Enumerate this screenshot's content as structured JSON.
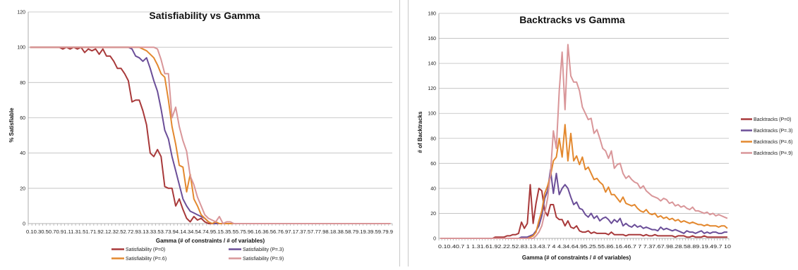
{
  "chart_data": [
    {
      "type": "line",
      "title": "Satisfiability vs Gamma",
      "xlabel": "Gamma (# of constraints / # of variables)",
      "ylabel": "% Satisfiable",
      "ylim": [
        0,
        120
      ],
      "yticks": [
        "0",
        "20",
        "40",
        "60",
        "80",
        "100",
        "120"
      ],
      "xtick_text": "0.10.30.50.70.91.11.31.51.71.92.12.32.52.72.93.13.33.53.73.94.14.34.54.74.95.15.35.55.75.96.16.36.56.76.97.17.37.57.77.98.18.38.58.79.19.39.59.79.9",
      "x": [
        0.1,
        0.2,
        0.3,
        0.4,
        0.5,
        0.6,
        0.7,
        0.8,
        0.9,
        1.0,
        1.1,
        1.2,
        1.3,
        1.4,
        1.5,
        1.6,
        1.7,
        1.8,
        1.9,
        2.0,
        2.1,
        2.2,
        2.3,
        2.4,
        2.5,
        2.6,
        2.7,
        2.8,
        2.9,
        3.0,
        3.1,
        3.2,
        3.3,
        3.4,
        3.5,
        3.6,
        3.7,
        3.8,
        3.9,
        4.0,
        4.1,
        4.2,
        4.3,
        4.4,
        4.5,
        4.6,
        4.7,
        4.8,
        4.9,
        5.0,
        5.1,
        5.2,
        5.3,
        5.4,
        5.5,
        5.6,
        5.7,
        5.8,
        5.9,
        6.0,
        6.1,
        6.2,
        6.3,
        6.4,
        6.5,
        6.6,
        6.7,
        6.8,
        6.9,
        7.0,
        7.1,
        7.2,
        7.3,
        7.4,
        7.5,
        7.6,
        7.7,
        7.8,
        7.9,
        8.0,
        8.1,
        8.2,
        8.3,
        8.4,
        8.5,
        8.6,
        8.7,
        8.8,
        8.9,
        9.0,
        9.1,
        9.2,
        9.3,
        9.4,
        9.5,
        9.6,
        9.7,
        9.8,
        9.9,
        10.0
      ],
      "legend_position": "bottom",
      "series": [
        {
          "name": "Satisfiability (P=0)",
          "color": "#a8393a",
          "values": [
            100,
            100,
            100,
            100,
            100,
            100,
            100,
            100,
            100,
            99,
            100,
            99,
            100,
            99,
            100,
            97,
            99,
            98,
            99,
            96,
            99,
            95,
            95,
            92,
            88,
            88,
            85,
            81,
            69,
            70,
            70,
            64,
            56,
            40,
            38,
            42,
            38,
            21,
            20,
            20,
            10,
            14,
            8,
            3,
            1,
            4,
            2,
            3,
            1,
            0,
            0,
            0,
            0,
            0,
            0,
            0,
            0,
            0,
            0,
            0,
            0,
            0,
            0,
            0,
            0,
            0,
            0,
            0,
            0,
            0,
            0,
            0,
            0,
            0,
            0,
            0,
            0,
            0,
            0,
            0,
            0,
            0,
            0,
            0,
            0,
            0,
            0,
            0,
            0,
            0,
            0,
            0,
            0,
            0,
            0,
            0,
            0,
            0,
            0,
            0
          ]
        },
        {
          "name": "Satisfiability (P=.3)",
          "color": "#6b4e98",
          "values": [
            100,
            100,
            100,
            100,
            100,
            100,
            100,
            100,
            100,
            100,
            100,
            100,
            100,
            100,
            100,
            100,
            100,
            100,
            100,
            100,
            100,
            100,
            100,
            100,
            100,
            100,
            100,
            100,
            99,
            95,
            94,
            92,
            94,
            88,
            81,
            75,
            65,
            53,
            48,
            38,
            30,
            22,
            14,
            10,
            7,
            6,
            5,
            4,
            3,
            1,
            0,
            0,
            0,
            0,
            0,
            0,
            0,
            0,
            0,
            0,
            0,
            0,
            0,
            0,
            0,
            0,
            0,
            0,
            0,
            0,
            0,
            0,
            0,
            0,
            0,
            0,
            0,
            0,
            0,
            0,
            0,
            0,
            0,
            0,
            0,
            0,
            0,
            0,
            0,
            0,
            0,
            0,
            0,
            0,
            0,
            0,
            0,
            0,
            0,
            0
          ]
        },
        {
          "name": "Satisfiability (P=.6)",
          "color": "#e3882e",
          "values": [
            100,
            100,
            100,
            100,
            100,
            100,
            100,
            100,
            100,
            100,
            100,
            100,
            100,
            100,
            100,
            100,
            100,
            100,
            100,
            100,
            100,
            100,
            100,
            100,
            100,
            100,
            100,
            100,
            100,
            100,
            100,
            99,
            98,
            96,
            94,
            90,
            85,
            83,
            70,
            55,
            45,
            33,
            32,
            18,
            28,
            14,
            10,
            5,
            3,
            1,
            0,
            1,
            0,
            0,
            0,
            0,
            0,
            0,
            0,
            0,
            0,
            0,
            0,
            0,
            0,
            0,
            0,
            0,
            0,
            0,
            0,
            0,
            0,
            0,
            0,
            0,
            0,
            0,
            0,
            0,
            0,
            0,
            0,
            0,
            0,
            0,
            0,
            0,
            0,
            0,
            0,
            0,
            0,
            0,
            0,
            0,
            0,
            0,
            0,
            0
          ]
        },
        {
          "name": "Satisfiability (P=.9)",
          "color": "#d99699",
          "values": [
            100,
            100,
            100,
            100,
            100,
            100,
            100,
            100,
            100,
            100,
            100,
            100,
            100,
            100,
            100,
            100,
            100,
            100,
            100,
            100,
            100,
            100,
            100,
            100,
            100,
            100,
            100,
            100,
            100,
            100,
            100,
            100,
            100,
            100,
            100,
            99,
            93,
            85,
            85,
            60,
            66,
            55,
            47,
            41,
            27,
            22,
            15,
            10,
            5,
            3,
            2,
            1,
            4,
            0,
            1,
            1,
            0,
            0,
            0,
            0,
            0,
            0,
            0,
            0,
            0,
            0,
            0,
            0,
            0,
            0,
            0,
            0,
            0,
            0,
            0,
            0,
            0,
            0,
            0,
            0,
            0,
            0,
            0,
            0,
            0,
            0,
            0,
            0,
            0,
            0,
            0,
            0,
            0,
            0,
            0,
            0,
            0,
            0,
            0,
            0
          ]
        }
      ]
    },
    {
      "type": "line",
      "title": "Backtracks vs Gamma",
      "xlabel": "Gamma (# of constraints / # of variables)",
      "ylabel": "# of Backtracks",
      "ylim": [
        0,
        180
      ],
      "yticks": [
        "0",
        "20",
        "40",
        "60",
        "80",
        "100",
        "120",
        "140",
        "160",
        "180"
      ],
      "xtick_text": "0.10.40.7 1 1.31.61.92.22.52.83.13.43.7 4 4.34.64.95.25.55.86.16.46.7 7 7.37.67.98.28.58.89.19.49.7 10",
      "x": [
        0.1,
        0.2,
        0.3,
        0.4,
        0.5,
        0.6,
        0.7,
        0.8,
        0.9,
        1.0,
        1.1,
        1.2,
        1.3,
        1.4,
        1.5,
        1.6,
        1.7,
        1.8,
        1.9,
        2.0,
        2.1,
        2.2,
        2.3,
        2.4,
        2.5,
        2.6,
        2.7,
        2.8,
        2.9,
        3.0,
        3.1,
        3.2,
        3.3,
        3.4,
        3.5,
        3.6,
        3.7,
        3.8,
        3.9,
        4.0,
        4.1,
        4.2,
        4.3,
        4.4,
        4.5,
        4.6,
        4.7,
        4.8,
        4.9,
        5.0,
        5.1,
        5.2,
        5.3,
        5.4,
        5.5,
        5.6,
        5.7,
        5.8,
        5.9,
        6.0,
        6.1,
        6.2,
        6.3,
        6.4,
        6.5,
        6.6,
        6.7,
        6.8,
        6.9,
        7.0,
        7.1,
        7.2,
        7.3,
        7.4,
        7.5,
        7.6,
        7.7,
        7.8,
        7.9,
        8.0,
        8.1,
        8.2,
        8.3,
        8.4,
        8.5,
        8.6,
        8.7,
        8.8,
        8.9,
        9.0,
        9.1,
        9.2,
        9.3,
        9.4,
        9.5,
        9.6,
        9.7,
        9.8,
        9.9,
        10.0
      ],
      "legend_position": "right",
      "series": [
        {
          "name": "Backtracks (P=0)",
          "color": "#a8393a",
          "values": [
            0,
            0,
            0,
            0,
            0,
            0,
            0,
            0,
            0,
            0,
            0,
            0,
            0,
            0,
            0,
            0,
            0,
            0,
            0,
            1,
            1,
            1,
            1,
            2,
            2,
            3,
            3,
            4,
            13,
            8,
            12,
            43,
            12,
            28,
            40,
            38,
            22,
            18,
            27,
            27,
            17,
            15,
            15,
            10,
            14,
            9,
            8,
            10,
            6,
            5,
            5,
            6,
            4,
            5,
            4,
            4,
            4,
            4,
            3,
            5,
            3,
            3,
            3,
            3,
            2,
            3,
            3,
            3,
            3,
            3,
            2,
            3,
            2,
            2,
            3,
            2,
            2,
            2,
            2,
            2,
            2,
            1,
            2,
            2,
            2,
            1,
            1,
            2,
            1,
            1,
            1,
            2,
            1,
            1,
            1,
            1,
            1,
            1,
            1,
            1
          ]
        },
        {
          "name": "Backtracks (P=.3)",
          "color": "#6b4e98",
          "values": [
            0,
            0,
            0,
            0,
            0,
            0,
            0,
            0,
            0,
            0,
            0,
            0,
            0,
            0,
            0,
            0,
            0,
            0,
            0,
            0,
            0,
            0,
            0,
            0,
            0,
            0,
            0,
            0,
            1,
            1,
            1,
            2,
            3,
            6,
            10,
            18,
            32,
            38,
            55,
            36,
            52,
            35,
            40,
            43,
            40,
            33,
            27,
            29,
            24,
            23,
            19,
            17,
            20,
            16,
            18,
            14,
            16,
            17,
            15,
            12,
            15,
            13,
            16,
            10,
            12,
            10,
            9,
            11,
            9,
            10,
            8,
            9,
            8,
            7,
            7,
            6,
            9,
            7,
            8,
            7,
            6,
            7,
            6,
            5,
            4,
            6,
            5,
            5,
            4,
            5,
            6,
            4,
            5,
            4,
            5,
            5,
            4,
            4,
            5,
            5
          ]
        },
        {
          "name": "Backtracks (P=.6)",
          "color": "#e3882e",
          "values": [
            0,
            0,
            0,
            0,
            0,
            0,
            0,
            0,
            0,
            0,
            0,
            0,
            0,
            0,
            0,
            0,
            0,
            0,
            0,
            0,
            0,
            0,
            0,
            0,
            0,
            0,
            0,
            0,
            0,
            0,
            0,
            1,
            2,
            5,
            14,
            22,
            36,
            42,
            50,
            62,
            65,
            80,
            65,
            91,
            62,
            84,
            62,
            66,
            59,
            65,
            55,
            57,
            52,
            47,
            48,
            45,
            43,
            37,
            41,
            35,
            35,
            32,
            29,
            33,
            28,
            27,
            26,
            27,
            24,
            22,
            21,
            23,
            20,
            19,
            20,
            17,
            18,
            16,
            17,
            15,
            16,
            14,
            15,
            13,
            14,
            13,
            12,
            13,
            12,
            11,
            11,
            10,
            11,
            10,
            10,
            10,
            9,
            10,
            10,
            8
          ]
        },
        {
          "name": "Backtracks (P=.9)",
          "color": "#d99699",
          "values": [
            0,
            0,
            0,
            0,
            0,
            0,
            0,
            0,
            0,
            0,
            0,
            0,
            0,
            0,
            0,
            0,
            0,
            0,
            0,
            0,
            0,
            0,
            0,
            0,
            0,
            0,
            0,
            0,
            0,
            0,
            0,
            0,
            0,
            2,
            5,
            10,
            20,
            32,
            52,
            86,
            72,
            118,
            149,
            103,
            155,
            130,
            125,
            125,
            118,
            105,
            100,
            95,
            96,
            84,
            87,
            80,
            72,
            70,
            64,
            70,
            56,
            59,
            60,
            52,
            48,
            50,
            47,
            45,
            44,
            40,
            42,
            38,
            36,
            34,
            33,
            32,
            30,
            32,
            31,
            28,
            29,
            26,
            27,
            25,
            26,
            24,
            23,
            25,
            22,
            22,
            21,
            20,
            21,
            19,
            20,
            18,
            19,
            18,
            17,
            16
          ]
        }
      ]
    }
  ]
}
